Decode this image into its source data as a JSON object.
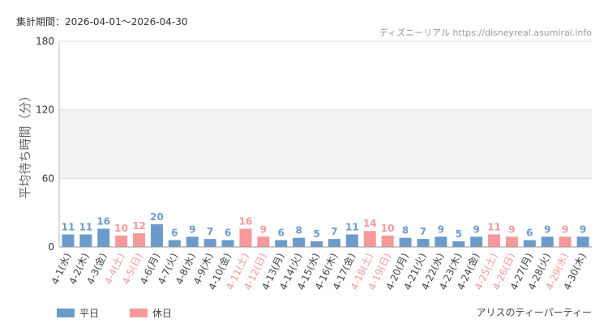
{
  "chart_data": {
    "type": "bar",
    "period": "集計期間：2026-04-01～2026-04-30",
    "source": "ディズニーリアル https://disneyreal.asumirai.info",
    "y_label": "平均待ち時間（分）",
    "footer": "アリスのティーパーティー",
    "categories": [
      "4-1(水)",
      "4-2(木)",
      "4-3(金)",
      "4-4(土)",
      "4-5(日)",
      "4-6(月)",
      "4-7(火)",
      "4-8(水)",
      "4-9(木)",
      "4-10(金)",
      "4-11(土)",
      "4-12(日)",
      "4-13(月)",
      "4-14(火)",
      "4-15(水)",
      "4-16(木)",
      "4-17(金)",
      "4-18(土)",
      "4-19(日)",
      "4-20(月)",
      "4-21(火)",
      "4-22(水)",
      "4-23(木)",
      "4-24(金)",
      "4-25(土)",
      "4-26(日)",
      "4-27(月)",
      "4-28(火)",
      "4-29(水)",
      "4-30(木)"
    ],
    "series": [
      {
        "name": "平日",
        "color": "#6b9bcb",
        "values": [
          11,
          11,
          16,
          null,
          null,
          20,
          6,
          9,
          7,
          6,
          null,
          null,
          6,
          8,
          5,
          7,
          11,
          null,
          null,
          8,
          7,
          9,
          5,
          9,
          null,
          null,
          6,
          9,
          null,
          9
        ]
      },
      {
        "name": "休日",
        "color": "#f5999a",
        "values": [
          null,
          null,
          null,
          10,
          12,
          null,
          null,
          null,
          null,
          null,
          16,
          9,
          null,
          null,
          null,
          null,
          null,
          14,
          10,
          null,
          null,
          null,
          null,
          null,
          11,
          9,
          null,
          null,
          9,
          null
        ]
      }
    ],
    "ylim": [
      0,
      180
    ],
    "yticks": [
      0,
      60,
      120,
      180
    ],
    "grid": true
  }
}
